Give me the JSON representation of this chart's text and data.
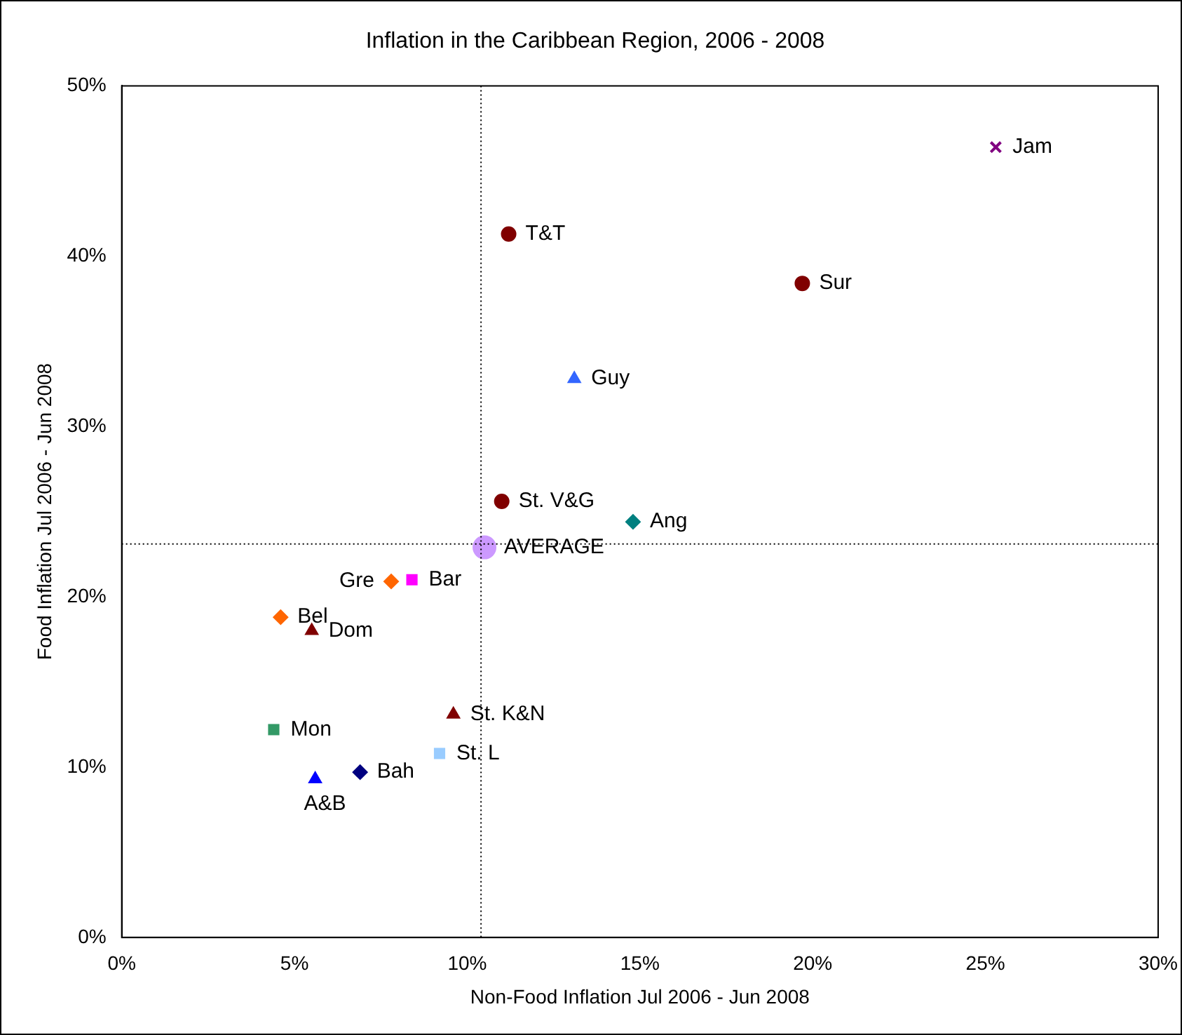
{
  "chart_data": {
    "type": "scatter",
    "title": "Inflation in the Caribbean Region, 2006 - 2008",
    "xlabel": "Non-Food Inflation Jul 2006 - Jun 2008",
    "ylabel": "Food Inflation Jul 2006 - Jun 2008",
    "xlim": [
      0,
      30
    ],
    "xticks": [
      {
        "value": 0,
        "label": "0%"
      },
      {
        "value": 5,
        "label": "5%"
      },
      {
        "value": 10,
        "label": "10%"
      },
      {
        "value": 15,
        "label": "15%"
      },
      {
        "value": 20,
        "label": "20%"
      },
      {
        "value": 25,
        "label": "25%"
      },
      {
        "value": 30,
        "label": "30%"
      }
    ],
    "ylim": [
      0,
      50
    ],
    "yticks": [
      {
        "value": 0,
        "label": "0%"
      },
      {
        "value": 10,
        "label": "10%"
      },
      {
        "value": 20,
        "label": "20%"
      },
      {
        "value": 30,
        "label": "30%"
      },
      {
        "value": 40,
        "label": "40%"
      },
      {
        "value": 50,
        "label": "50%"
      }
    ],
    "grid": false,
    "legend": false,
    "ref_lines": [
      {
        "axis": "x",
        "value": 10.4,
        "color": "#000000",
        "line_style": "dotted"
      },
      {
        "axis": "y",
        "value": 23.1,
        "color": "#000000",
        "line_style": "dotted"
      }
    ],
    "series": [
      {
        "name": "Jam",
        "color": "#800080",
        "marker": "cross",
        "x": [
          25.3
        ],
        "values": [
          46.4
        ]
      },
      {
        "name": "T&T",
        "color": "#800000",
        "marker": "circle",
        "x": [
          11.2
        ],
        "values": [
          41.3
        ]
      },
      {
        "name": "Sur",
        "color": "#800000",
        "marker": "circle",
        "x": [
          19.7
        ],
        "values": [
          38.4
        ]
      },
      {
        "name": "Guy",
        "color": "#3366ff",
        "marker": "triangle",
        "x": [
          13.1
        ],
        "values": [
          32.8
        ]
      },
      {
        "name": "St. V&G",
        "color": "#800000",
        "marker": "circle",
        "x": [
          11.0
        ],
        "values": [
          25.6
        ]
      },
      {
        "name": "Ang",
        "color": "#008080",
        "marker": "diamond",
        "x": [
          14.8
        ],
        "values": [
          24.4
        ]
      },
      {
        "name": "AVERAGE",
        "color": "#cc99ff",
        "marker": "circle",
        "x": [
          10.5
        ],
        "values": [
          22.9
        ]
      },
      {
        "name": "Gre",
        "color": "#ff6600",
        "marker": "diamond",
        "x": [
          7.8
        ],
        "values": [
          20.9
        ]
      },
      {
        "name": "Bar",
        "color": "#ff00ff",
        "marker": "square",
        "x": [
          8.4
        ],
        "values": [
          21.0
        ]
      },
      {
        "name": "Bel",
        "color": "#ff6600",
        "marker": "diamond",
        "x": [
          4.6
        ],
        "values": [
          18.8
        ]
      },
      {
        "name": "Dom",
        "color": "#800000",
        "marker": "triangle",
        "x": [
          5.5
        ],
        "values": [
          18.0
        ]
      },
      {
        "name": "Mon",
        "color": "#339966",
        "marker": "square",
        "x": [
          4.4
        ],
        "values": [
          12.2
        ]
      },
      {
        "name": "St. K&N",
        "color": "#800000",
        "marker": "triangle",
        "x": [
          9.6
        ],
        "values": [
          13.1
        ]
      },
      {
        "name": "St. L",
        "color": "#99ccff",
        "marker": "square",
        "x": [
          9.2
        ],
        "values": [
          10.8
        ]
      },
      {
        "name": "Bah",
        "color": "#000080",
        "marker": "diamond",
        "x": [
          6.9
        ],
        "values": [
          9.7
        ]
      },
      {
        "name": "A&B",
        "color": "#0000ff",
        "marker": "triangle",
        "x": [
          5.6
        ],
        "values": [
          9.3
        ]
      }
    ]
  }
}
